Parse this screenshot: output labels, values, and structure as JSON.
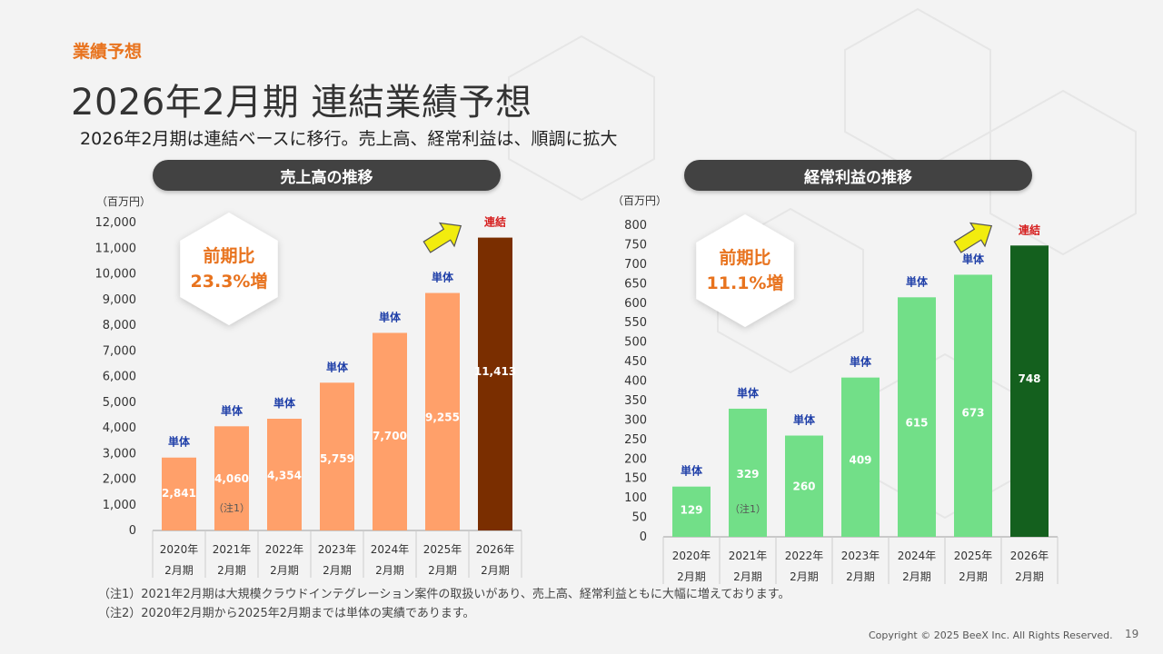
{
  "header": {
    "section_label": "業績予想",
    "title": "2026年2月期 連結業績予想",
    "subtitle": "2026年2月期は連結ベースに移行。売上高、経常利益は、順調に拡大"
  },
  "chart_data": [
    {
      "type": "bar",
      "title": "売上高の推移",
      "unit_label": "（百万円）",
      "categories": [
        [
          "2020年",
          "2月期"
        ],
        [
          "2021年",
          "2月期"
        ],
        [
          "2022年",
          "2月期"
        ],
        [
          "2023年",
          "2月期"
        ],
        [
          "2024年",
          "2月期"
        ],
        [
          "2025年",
          "2月期"
        ],
        [
          "2026年",
          "2月期"
        ]
      ],
      "values": [
        2841,
        4060,
        4354,
        5759,
        7700,
        9255,
        11413
      ],
      "value_labels": [
        "2,841",
        "4,060",
        "4,354",
        "5,759",
        "7,700",
        "9,255",
        "11,413"
      ],
      "bar_tags": [
        "単体",
        "単体",
        "単体",
        "単体",
        "単体",
        "単体",
        "連結"
      ],
      "note_marks": [
        "",
        "（注1）",
        "",
        "",
        "",
        "",
        ""
      ],
      "ylim": [
        0,
        12000
      ],
      "yticks": [
        0,
        1000,
        2000,
        3000,
        4000,
        5000,
        6000,
        7000,
        8000,
        9000,
        10000,
        11000,
        12000
      ],
      "ytick_labels": [
        "0",
        "1,000",
        "2,000",
        "3,000",
        "4,000",
        "5,000",
        "6,000",
        "7,000",
        "8,000",
        "9,000",
        "10,000",
        "11,000",
        "12,000"
      ],
      "growth_badge": [
        "前期比",
        "23.3%増"
      ],
      "colors": {
        "bar": "#ffa06a",
        "highlight": "#7a2e00",
        "tag_standalone": "#1f3fa8",
        "tag_consolidated": "#d62020"
      }
    },
    {
      "type": "bar",
      "title": "経常利益の推移",
      "unit_label": "（百万円）",
      "categories": [
        [
          "2020年",
          "2月期"
        ],
        [
          "2021年",
          "2月期"
        ],
        [
          "2022年",
          "2月期"
        ],
        [
          "2023年",
          "2月期"
        ],
        [
          "2024年",
          "2月期"
        ],
        [
          "2025年",
          "2月期"
        ],
        [
          "2026年",
          "2月期"
        ]
      ],
      "values": [
        129,
        329,
        260,
        409,
        615,
        673,
        748
      ],
      "value_labels": [
        "129",
        "329",
        "260",
        "409",
        "615",
        "673",
        "748"
      ],
      "bar_tags": [
        "単体",
        "単体",
        "単体",
        "単体",
        "単体",
        "単体",
        "連結"
      ],
      "note_marks": [
        "",
        "（注1）",
        "",
        "",
        "",
        "",
        ""
      ],
      "ylim": [
        0,
        800
      ],
      "yticks": [
        0,
        50,
        100,
        150,
        200,
        250,
        300,
        350,
        400,
        450,
        500,
        550,
        600,
        650,
        700,
        750,
        800
      ],
      "ytick_labels": [
        "0",
        "50",
        "100",
        "150",
        "200",
        "250",
        "300",
        "350",
        "400",
        "450",
        "500",
        "550",
        "600",
        "650",
        "700",
        "750",
        "800"
      ],
      "growth_badge": [
        "前期比",
        "11.1%増"
      ],
      "colors": {
        "bar": "#72df88",
        "highlight": "#14601e",
        "tag_standalone": "#1f3fa8",
        "tag_consolidated": "#d62020"
      }
    }
  ],
  "notes": [
    "（注1）2021年2月期は大規模クラウドインテグレーション案件の取扱いがあり、売上高、経常利益ともに大幅に増えております。",
    "（注2）2020年2月期から2025年2月期までは単体の実績であります。"
  ],
  "footer": {
    "copyright": "Copyright © 2025  BeeX Inc. All Rights Reserved.",
    "page_number": "19"
  }
}
